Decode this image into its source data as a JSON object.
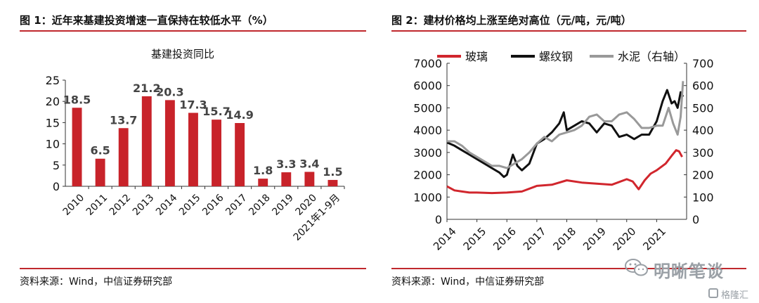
{
  "left": {
    "title": "图 1：近年来基建投资增速一直保持在较低水平（%）",
    "source": "资料来源：Wind，中信证券研究部"
  },
  "right": {
    "title": "图 2：建材价格均上涨至绝对高位（元/吨，元/吨）",
    "source": "资料来源：Wind，中信证券研究部"
  },
  "watermark": {
    "main": "明晰笔谈",
    "sub": "格隆汇"
  },
  "colors": {
    "accent": "#c0282d",
    "bar": "#c8232a",
    "glass": "#d1262d",
    "rebar": "#111111",
    "cement": "#999999"
  },
  "chart_data": [
    {
      "type": "bar",
      "title": "基建投资同比",
      "categories": [
        "2010",
        "2011",
        "2012",
        "2013",
        "2014",
        "2015",
        "2016",
        "2017",
        "2018",
        "2019",
        "2020",
        "2021年1-9月"
      ],
      "values": [
        18.5,
        6.5,
        13.7,
        21.2,
        20.3,
        17.3,
        15.7,
        14.9,
        1.8,
        3.3,
        3.4,
        1.5
      ],
      "value_labels": [
        "18.5",
        "6.5",
        "13.7",
        "21.2",
        "20.3",
        "17.3",
        "15.7",
        "14.9",
        "1.8",
        "3.3",
        "3.4",
        "1.5"
      ],
      "ylim": [
        0,
        25
      ],
      "yticks": [
        "0",
        "5",
        "10",
        "15",
        "20",
        "25"
      ],
      "grid": false
    },
    {
      "type": "line",
      "legend": [
        "玻璃",
        "螺纹钢",
        "水泥（右轴）"
      ],
      "legend_position": "top",
      "xlim": [
        2014,
        2022
      ],
      "xticks": [
        "2014",
        "2015",
        "2016",
        "2017",
        "2018",
        "2019",
        "2020",
        "2021"
      ],
      "ylim_left": [
        0,
        7000
      ],
      "yticks_left": [
        "0",
        "1000",
        "2000",
        "3000",
        "4000",
        "5000",
        "6000",
        "7000"
      ],
      "ylim_right": [
        0,
        700
      ],
      "yticks_right": [
        "0",
        "100",
        "200",
        "300",
        "400",
        "500",
        "600",
        "700"
      ],
      "series": [
        {
          "name": "玻璃",
          "axis": "left",
          "x": [
            2014,
            2014.25,
            2014.5,
            2014.75,
            2015,
            2015.5,
            2016,
            2016.5,
            2017,
            2017.5,
            2018,
            2018.5,
            2019,
            2019.5,
            2020,
            2020.2,
            2020.4,
            2020.6,
            2020.8,
            2021,
            2021.3,
            2021.5,
            2021.65,
            2021.75,
            2021.85
          ],
          "values": [
            1480,
            1300,
            1250,
            1200,
            1200,
            1180,
            1200,
            1250,
            1500,
            1550,
            1750,
            1650,
            1600,
            1550,
            1800,
            1700,
            1350,
            1750,
            2050,
            2200,
            2500,
            2850,
            3100,
            3050,
            2800
          ]
        },
        {
          "name": "螺纹钢",
          "axis": "left",
          "x": [
            2014,
            2014.25,
            2014.5,
            2014.75,
            2015,
            2015.25,
            2015.5,
            2015.75,
            2015.9,
            2016,
            2016.2,
            2016.35,
            2016.5,
            2016.75,
            2017,
            2017.25,
            2017.5,
            2017.75,
            2017.9,
            2018,
            2018.25,
            2018.5,
            2018.75,
            2019,
            2019.25,
            2019.5,
            2019.75,
            2020,
            2020.25,
            2020.5,
            2020.75,
            2021,
            2021.2,
            2021.35,
            2021.5,
            2021.6,
            2021.7,
            2021.8,
            2021.88
          ],
          "values": [
            3450,
            3300,
            3100,
            2900,
            2700,
            2500,
            2300,
            2100,
            1900,
            2000,
            2900,
            2400,
            2200,
            2500,
            3400,
            3600,
            3900,
            4300,
            4800,
            4000,
            4200,
            4400,
            4300,
            3900,
            4300,
            4200,
            3700,
            3800,
            3600,
            3800,
            3800,
            4400,
            5300,
            5800,
            5200,
            5300,
            5000,
            5700,
            5500
          ]
        },
        {
          "name": "水泥（右轴）",
          "axis": "right",
          "x": [
            2014,
            2014.25,
            2014.5,
            2014.75,
            2015,
            2015.25,
            2015.5,
            2015.75,
            2016,
            2016.25,
            2016.5,
            2016.75,
            2017,
            2017.25,
            2017.5,
            2017.75,
            2018,
            2018.25,
            2018.5,
            2018.75,
            2019,
            2019.25,
            2019.5,
            2019.75,
            2020,
            2020.25,
            2020.5,
            2020.75,
            2021,
            2021.2,
            2021.4,
            2021.55,
            2021.7,
            2021.8,
            2021.88
          ],
          "values": [
            350,
            350,
            330,
            300,
            280,
            260,
            240,
            240,
            230,
            250,
            270,
            300,
            340,
            370,
            350,
            380,
            390,
            400,
            420,
            460,
            470,
            440,
            440,
            470,
            480,
            450,
            410,
            410,
            420,
            420,
            500,
            430,
            380,
            460,
            620
          ]
        }
      ]
    }
  ]
}
